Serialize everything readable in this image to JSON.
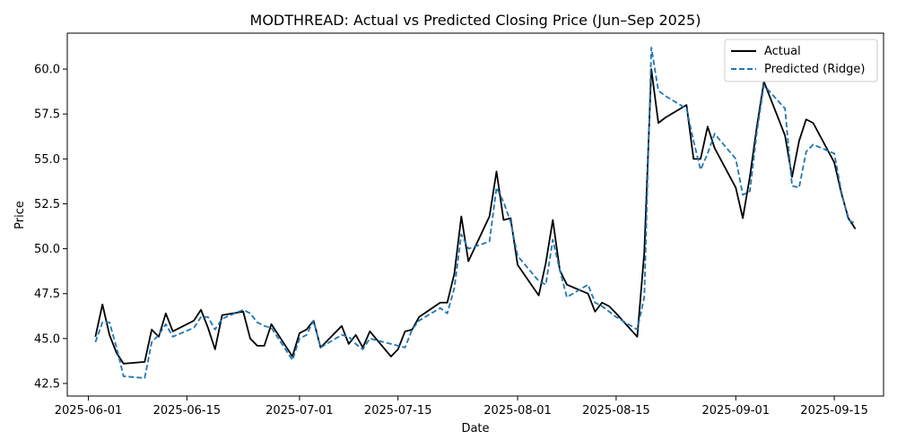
{
  "chart_data": {
    "type": "line",
    "title": "MODTHREAD: Actual vs Predicted Closing Price (Jun–Sep 2025)",
    "xlabel": "Date",
    "ylabel": "Price",
    "xlim": [
      "2025-05-29",
      "2025-09-22"
    ],
    "ylim": [
      41.8,
      62.0
    ],
    "x_ticks": [
      "2025-06-01",
      "2025-06-15",
      "2025-07-01",
      "2025-07-15",
      "2025-08-01",
      "2025-08-15",
      "2025-09-01",
      "2025-09-15"
    ],
    "y_ticks": [
      42.5,
      45.0,
      47.5,
      50.0,
      52.5,
      55.0,
      57.5,
      60.0
    ],
    "y_tick_labels": [
      "42.5",
      "45.0",
      "47.5",
      "50.0",
      "52.5",
      "55.0",
      "57.5",
      "60.0"
    ],
    "grid": false,
    "legend_position": "top-right",
    "series": [
      {
        "name": "Actual",
        "color": "#000000",
        "style": "solid",
        "x": [
          "2025-06-02",
          "2025-06-03",
          "2025-06-04",
          "2025-06-05",
          "2025-06-06",
          "2025-06-09",
          "2025-06-10",
          "2025-06-11",
          "2025-06-12",
          "2025-06-13",
          "2025-06-16",
          "2025-06-17",
          "2025-06-18",
          "2025-06-19",
          "2025-06-20",
          "2025-06-23",
          "2025-06-24",
          "2025-06-25",
          "2025-06-26",
          "2025-06-27",
          "2025-06-30",
          "2025-07-01",
          "2025-07-02",
          "2025-07-03",
          "2025-07-04",
          "2025-07-07",
          "2025-07-08",
          "2025-07-09",
          "2025-07-10",
          "2025-07-11",
          "2025-07-14",
          "2025-07-15",
          "2025-07-16",
          "2025-07-17",
          "2025-07-18",
          "2025-07-21",
          "2025-07-22",
          "2025-07-23",
          "2025-07-24",
          "2025-07-25",
          "2025-07-28",
          "2025-07-29",
          "2025-07-30",
          "2025-07-31",
          "2025-08-01",
          "2025-08-04",
          "2025-08-05",
          "2025-08-06",
          "2025-08-07",
          "2025-08-08",
          "2025-08-11",
          "2025-08-12",
          "2025-08-13",
          "2025-08-14",
          "2025-08-15",
          "2025-08-18",
          "2025-08-19",
          "2025-08-20",
          "2025-08-21",
          "2025-08-22",
          "2025-08-25",
          "2025-08-26",
          "2025-08-27",
          "2025-08-28",
          "2025-08-29",
          "2025-09-01",
          "2025-09-02",
          "2025-09-03",
          "2025-09-04",
          "2025-09-05",
          "2025-09-08",
          "2025-09-09",
          "2025-09-10",
          "2025-09-11",
          "2025-09-12",
          "2025-09-15",
          "2025-09-16",
          "2025-09-17",
          "2025-09-18"
        ],
        "values": [
          45.1,
          46.9,
          45.2,
          44.2,
          43.6,
          43.7,
          45.5,
          45.1,
          46.4,
          45.4,
          46.0,
          46.6,
          45.6,
          44.4,
          46.3,
          46.5,
          45.0,
          44.6,
          44.6,
          45.8,
          44.0,
          45.3,
          45.5,
          46.0,
          44.5,
          45.7,
          44.7,
          45.2,
          44.5,
          45.4,
          44.0,
          44.4,
          45.4,
          45.5,
          46.2,
          47.0,
          47.0,
          48.6,
          51.8,
          49.3,
          51.8,
          54.3,
          51.6,
          51.7,
          49.1,
          47.4,
          49.2,
          51.6,
          48.8,
          48.0,
          47.5,
          46.5,
          47.0,
          46.8,
          46.4,
          45.1,
          49.8,
          60.0,
          57.0,
          57.3,
          58.0,
          55.0,
          55.0,
          56.8,
          55.6,
          53.4,
          51.7,
          54.0,
          56.8,
          59.3,
          56.3,
          54.0,
          56.0,
          57.2,
          57.0,
          54.8,
          53.1,
          51.7,
          51.1
        ]
      },
      {
        "name": "Predicted (Ridge)",
        "color": "#1f77b4",
        "style": "dashed",
        "x": [
          "2025-06-02",
          "2025-06-03",
          "2025-06-04",
          "2025-06-05",
          "2025-06-06",
          "2025-06-09",
          "2025-06-10",
          "2025-06-11",
          "2025-06-12",
          "2025-06-13",
          "2025-06-16",
          "2025-06-17",
          "2025-06-18",
          "2025-06-19",
          "2025-06-20",
          "2025-06-23",
          "2025-06-24",
          "2025-06-25",
          "2025-06-26",
          "2025-06-27",
          "2025-06-30",
          "2025-07-01",
          "2025-07-02",
          "2025-07-03",
          "2025-07-04",
          "2025-07-07",
          "2025-07-08",
          "2025-07-09",
          "2025-07-10",
          "2025-07-11",
          "2025-07-14",
          "2025-07-15",
          "2025-07-16",
          "2025-07-17",
          "2025-07-18",
          "2025-07-21",
          "2025-07-22",
          "2025-07-23",
          "2025-07-24",
          "2025-07-25",
          "2025-07-28",
          "2025-07-29",
          "2025-07-30",
          "2025-07-31",
          "2025-08-01",
          "2025-08-04",
          "2025-08-05",
          "2025-08-06",
          "2025-08-07",
          "2025-08-08",
          "2025-08-11",
          "2025-08-12",
          "2025-08-13",
          "2025-08-14",
          "2025-08-15",
          "2025-08-18",
          "2025-08-19",
          "2025-08-20",
          "2025-08-21",
          "2025-08-22",
          "2025-08-25",
          "2025-08-26",
          "2025-08-27",
          "2025-08-28",
          "2025-08-29",
          "2025-09-01",
          "2025-09-02",
          "2025-09-03",
          "2025-09-04",
          "2025-09-05",
          "2025-09-08",
          "2025-09-09",
          "2025-09-10",
          "2025-09-11",
          "2025-09-12",
          "2025-09-15",
          "2025-09-16",
          "2025-09-17",
          "2025-09-18"
        ],
        "values": [
          44.8,
          45.9,
          45.9,
          44.5,
          42.9,
          42.8,
          44.8,
          45.2,
          45.8,
          45.1,
          45.6,
          46.2,
          46.2,
          45.5,
          46.1,
          46.6,
          46.4,
          45.9,
          45.7,
          45.6,
          43.8,
          45.0,
          45.2,
          46.0,
          44.5,
          45.2,
          45.1,
          44.7,
          44.4,
          45.0,
          44.7,
          44.6,
          44.5,
          45.5,
          46.0,
          46.7,
          46.4,
          47.8,
          50.8,
          50.0,
          50.4,
          53.4,
          52.6,
          51.5,
          49.6,
          48.2,
          48.0,
          50.5,
          48.8,
          47.3,
          48.0,
          47.0,
          46.8,
          46.5,
          46.2,
          45.5,
          47.3,
          61.2,
          58.8,
          58.5,
          57.8,
          56.0,
          54.4,
          55.3,
          56.4,
          55.0,
          53.0,
          53.2,
          56.5,
          59.1,
          57.8,
          53.5,
          53.4,
          55.4,
          55.8,
          55.3,
          53.2,
          51.6,
          51.4
        ]
      }
    ]
  }
}
